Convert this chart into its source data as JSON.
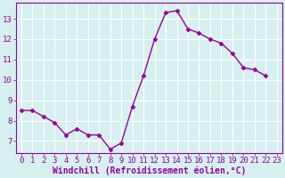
{
  "x": [
    0,
    1,
    2,
    3,
    4,
    5,
    6,
    7,
    8,
    9,
    10,
    11,
    12,
    13,
    14,
    15,
    16,
    17,
    18,
    19,
    20,
    21,
    22,
    23
  ],
  "y": [
    8.5,
    8.5,
    8.2,
    7.9,
    7.3,
    7.6,
    7.3,
    7.3,
    6.6,
    6.9,
    8.7,
    10.2,
    12.0,
    13.3,
    13.4,
    12.5,
    12.3,
    12.0,
    11.8,
    11.3,
    10.6,
    10.5,
    10.2,
    null
  ],
  "line_color": "#990099",
  "marker": "D",
  "markersize": 2.5,
  "linewidth": 1.0,
  "xlabel": "Windchill (Refroidissement éolien,°C)",
  "xlabel_fontsize": 7,
  "bg_color": "#d6f0f0",
  "grid_color": "#ffffff",
  "ylim": [
    6.4,
    13.8
  ],
  "xlim": [
    -0.5,
    23.5
  ],
  "yticks": [
    7,
    8,
    9,
    10,
    11,
    12,
    13
  ],
  "xticks": [
    0,
    1,
    2,
    3,
    4,
    5,
    6,
    7,
    8,
    9,
    10,
    11,
    12,
    13,
    14,
    15,
    16,
    17,
    18,
    19,
    20,
    21,
    22,
    23
  ],
  "tick_fontsize": 6.5,
  "tick_color": "#990099",
  "spine_color": "#990099"
}
